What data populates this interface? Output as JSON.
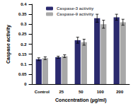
{
  "chart_data": {
    "type": "bar",
    "x_label": "Concentration (µg/ml)",
    "y_label": "Caspase activity",
    "categories": [
      "Control",
      "25",
      "50",
      "100",
      "200"
    ],
    "series": [
      {
        "name": "Caspase-3 activity",
        "color": "#2b2a6e",
        "values": [
          0.125,
          0.135,
          0.22,
          0.33,
          0.335
        ],
        "errors": [
          0.007,
          0.005,
          0.015,
          0.02,
          0.015
        ]
      },
      {
        "name": "Caspase-9 activity",
        "color": "#a8a8a8",
        "values": [
          0.13,
          0.14,
          0.21,
          0.3,
          0.31
        ],
        "errors": [
          0.007,
          0.007,
          0.015,
          0.02,
          0.015
        ]
      }
    ],
    "ylim": [
      0,
      0.4
    ],
    "yticks": [
      0,
      0.05,
      0.1,
      0.15,
      0.2,
      0.25,
      0.3,
      0.35,
      0.4
    ],
    "legend": "top",
    "grid": false
  }
}
